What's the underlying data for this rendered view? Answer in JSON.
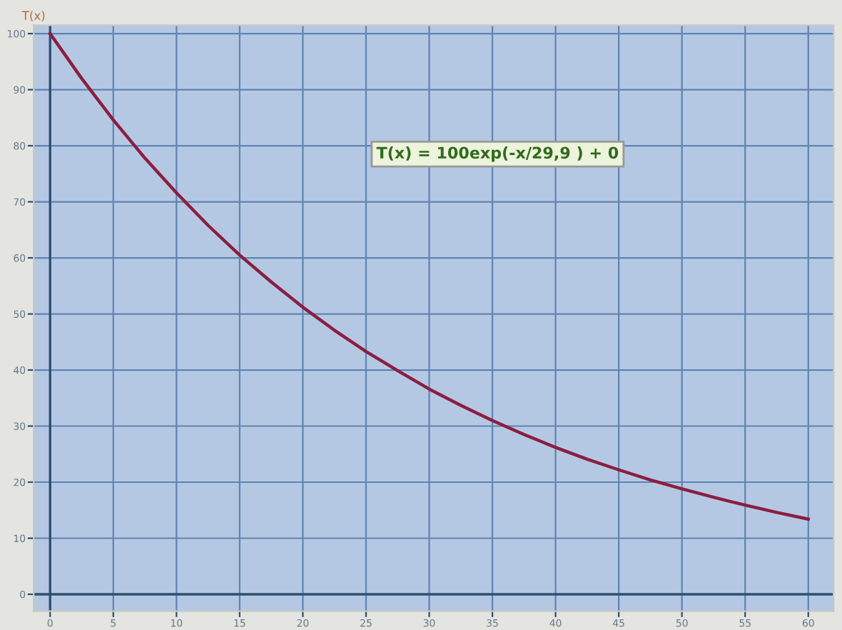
{
  "chart_data": {
    "type": "line",
    "ylabel": "T(x)",
    "x": [
      0,
      2.5,
      5,
      7.5,
      10,
      12.5,
      15,
      17.5,
      20,
      22.5,
      25,
      27.5,
      30,
      32.5,
      35,
      37.5,
      40,
      42.5,
      45,
      47.5,
      50,
      52.5,
      55,
      57.5,
      60
    ],
    "series": [
      {
        "color": "#8b1e3f",
        "values": [
          100,
          92.0,
          84.6,
          77.8,
          71.6,
          65.8,
          60.5,
          55.7,
          51.2,
          47.1,
          43.3,
          39.9,
          36.6,
          33.7,
          31.0,
          28.5,
          26.2,
          24.1,
          22.2,
          20.4,
          18.8,
          17.3,
          15.9,
          14.6,
          13.4
        ]
      }
    ],
    "xlim": [
      -1.3,
      62
    ],
    "ylim": [
      -3,
      101.5
    ],
    "xticks": [
      0,
      5,
      10,
      15,
      20,
      25,
      30,
      35,
      40,
      45,
      50,
      55,
      60
    ],
    "yticks": [
      0,
      10,
      20,
      30,
      40,
      50,
      60,
      70,
      80,
      90,
      100
    ],
    "grid": true,
    "legend": false,
    "marker": "none",
    "line_style": "solid",
    "annotations": [
      "T(x) = 100exp(-x/29,9 ) + 0"
    ]
  }
}
